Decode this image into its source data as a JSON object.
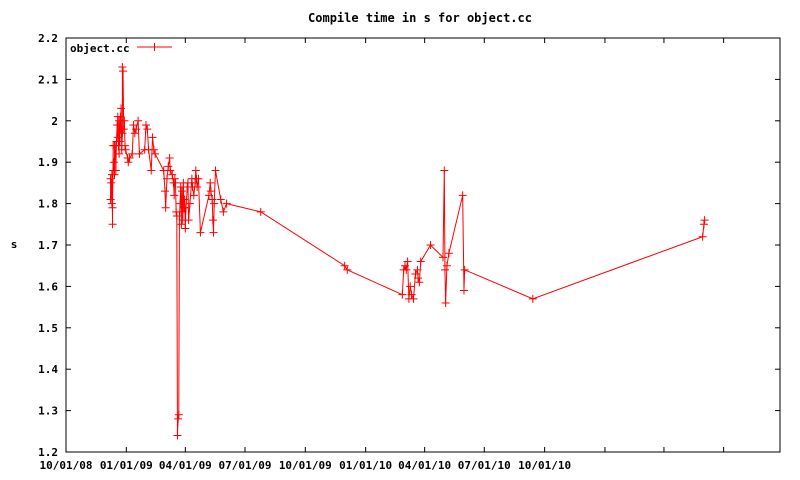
{
  "chart_data": {
    "type": "line",
    "title": "Compile time in s for object.cc",
    "ylabel": "s",
    "xlabel": "",
    "ylim": [
      1.2,
      2.2
    ],
    "yticks": [
      "1.2",
      "1.3",
      "1.4",
      "1.5",
      "1.6",
      "1.7",
      "1.8",
      "1.9",
      "2",
      "2.1",
      "2.2"
    ],
    "xlim": [
      "2008-10-01",
      "2011-09-25"
    ],
    "xticks": [
      {
        "date": "2008-10-01",
        "label": "10/01/08"
      },
      {
        "date": "2009-01-01",
        "label": "01/01/09"
      },
      {
        "date": "2009-04-01",
        "label": "04/01/09"
      },
      {
        "date": "2009-07-01",
        "label": "07/01/09"
      },
      {
        "date": "2009-10-01",
        "label": "10/01/09"
      },
      {
        "date": "2010-01-01",
        "label": "01/01/10"
      },
      {
        "date": "2010-04-01",
        "label": "04/01/10"
      },
      {
        "date": "2010-07-01",
        "label": "07/01/10"
      },
      {
        "date": "2010-10-01",
        "label": "10/01/10"
      },
      {
        "date": "2011-01-01",
        "label": ""
      },
      {
        "date": "2011-04-01",
        "label": ""
      },
      {
        "date": "2011-07-01",
        "label": ""
      }
    ],
    "grid": false,
    "legend_position": "top-left",
    "color": "#ff0000",
    "marker": "plus",
    "series": [
      {
        "name": "object.cc",
        "points": [
          [
            "2008-12-08",
            1.86
          ],
          [
            "2008-12-08",
            1.81
          ],
          [
            "2008-12-09",
            1.85
          ],
          [
            "2008-12-10",
            1.8
          ],
          [
            "2008-12-10",
            1.87
          ],
          [
            "2008-12-11",
            1.75
          ],
          [
            "2008-12-11",
            1.79
          ],
          [
            "2008-12-12",
            1.94
          ],
          [
            "2008-12-12",
            1.88
          ],
          [
            "2008-12-13",
            1.9
          ],
          [
            "2008-12-14",
            1.87
          ],
          [
            "2008-12-14",
            1.94
          ],
          [
            "2008-12-15",
            1.94
          ],
          [
            "2008-12-16",
            1.88
          ],
          [
            "2008-12-17",
            1.95
          ],
          [
            "2008-12-18",
            1.99
          ],
          [
            "2008-12-19",
            1.96
          ],
          [
            "2008-12-19",
            2.01
          ],
          [
            "2008-12-20",
            1.94
          ],
          [
            "2008-12-21",
            1.92
          ],
          [
            "2008-12-21",
            2.0
          ],
          [
            "2008-12-22",
            1.95
          ],
          [
            "2008-12-23",
            2.01
          ],
          [
            "2008-12-24",
            1.98
          ],
          [
            "2008-12-24",
            2.03
          ],
          [
            "2008-12-25",
            1.93
          ],
          [
            "2008-12-26",
            1.97
          ],
          [
            "2008-12-26",
            2.13
          ],
          [
            "2008-12-27",
            2.12
          ],
          [
            "2008-12-28",
            1.98
          ],
          [
            "2008-12-29",
            2.0
          ],
          [
            "2008-12-30",
            1.94
          ],
          [
            "2008-12-31",
            1.93
          ],
          [
            "2009-01-03",
            1.91
          ],
          [
            "2009-01-04",
            1.9
          ],
          [
            "2009-01-06",
            1.91
          ],
          [
            "2009-01-10",
            1.92
          ],
          [
            "2009-01-12",
            1.99
          ],
          [
            "2009-01-14",
            1.97
          ],
          [
            "2009-01-16",
            1.98
          ],
          [
            "2009-01-19",
            2.0
          ],
          [
            "2009-01-21",
            1.92
          ],
          [
            "2009-01-29",
            1.93
          ],
          [
            "2009-01-31",
            1.99
          ],
          [
            "2009-02-02",
            1.98
          ],
          [
            "2009-02-04",
            1.93
          ],
          [
            "2009-02-08",
            1.88
          ],
          [
            "2009-02-10",
            1.96
          ],
          [
            "2009-02-12",
            1.93
          ],
          [
            "2009-02-14",
            1.92
          ],
          [
            "2009-02-27",
            1.88
          ],
          [
            "2009-03-01",
            1.83
          ],
          [
            "2009-03-02",
            1.79
          ],
          [
            "2009-03-04",
            1.86
          ],
          [
            "2009-03-06",
            1.89
          ],
          [
            "2009-03-08",
            1.91
          ],
          [
            "2009-03-09",
            1.88
          ],
          [
            "2009-03-12",
            1.87
          ],
          [
            "2009-03-14",
            1.85
          ],
          [
            "2009-03-15",
            1.82
          ],
          [
            "2009-03-16",
            1.86
          ],
          [
            "2009-03-17",
            1.85
          ],
          [
            "2009-03-18",
            1.78
          ],
          [
            "2009-03-19",
            1.77
          ],
          [
            "2009-03-20",
            1.24
          ],
          [
            "2009-03-21",
            1.28
          ],
          [
            "2009-03-22",
            1.29
          ],
          [
            "2009-03-23",
            1.77
          ],
          [
            "2009-03-24",
            1.8
          ],
          [
            "2009-03-25",
            1.84
          ],
          [
            "2009-03-26",
            1.75
          ],
          [
            "2009-03-26",
            1.78
          ],
          [
            "2009-03-27",
            1.83
          ],
          [
            "2009-03-28",
            1.76
          ],
          [
            "2009-03-29",
            1.85
          ],
          [
            "2009-03-30",
            1.79
          ],
          [
            "2009-03-31",
            1.81
          ],
          [
            "2009-04-01",
            1.74
          ],
          [
            "2009-04-02",
            1.79
          ],
          [
            "2009-04-04",
            1.84
          ],
          [
            "2009-04-05",
            1.85
          ],
          [
            "2009-04-06",
            1.76
          ],
          [
            "2009-04-08",
            1.8
          ],
          [
            "2009-04-11",
            1.86
          ],
          [
            "2009-04-12",
            1.84
          ],
          [
            "2009-04-14",
            1.82
          ],
          [
            "2009-04-16",
            1.85
          ],
          [
            "2009-04-17",
            1.88
          ],
          [
            "2009-04-18",
            1.86
          ],
          [
            "2009-04-19",
            1.84
          ],
          [
            "2009-04-21",
            1.86
          ],
          [
            "2009-04-24",
            1.73
          ],
          [
            "2009-05-07",
            1.82
          ],
          [
            "2009-05-09",
            1.85
          ],
          [
            "2009-05-10",
            1.83
          ],
          [
            "2009-05-12",
            1.81
          ],
          [
            "2009-05-13",
            1.76
          ],
          [
            "2009-05-14",
            1.73
          ],
          [
            "2009-05-15",
            1.8
          ],
          [
            "2009-05-17",
            1.88
          ],
          [
            "2009-05-25",
            1.81
          ],
          [
            "2009-05-29",
            1.78
          ],
          [
            "2009-06-03",
            1.8
          ],
          [
            "2009-07-25",
            1.78
          ],
          [
            "2009-11-30",
            1.65
          ],
          [
            "2009-12-04",
            1.64
          ],
          [
            "2010-02-26",
            1.58
          ],
          [
            "2010-02-28",
            1.64
          ],
          [
            "2010-03-02",
            1.65
          ],
          [
            "2010-03-04",
            1.64
          ],
          [
            "2010-03-06",
            1.66
          ],
          [
            "2010-03-08",
            1.57
          ],
          [
            "2010-03-10",
            1.6
          ],
          [
            "2010-03-12",
            1.58
          ],
          [
            "2010-03-15",
            1.57
          ],
          [
            "2010-03-18",
            1.63
          ],
          [
            "2010-03-21",
            1.64
          ],
          [
            "2010-03-22",
            1.62
          ],
          [
            "2010-03-24",
            1.61
          ],
          [
            "2010-03-26",
            1.66
          ],
          [
            "2010-04-10",
            1.7
          ],
          [
            "2010-04-29",
            1.67
          ],
          [
            "2010-05-01",
            1.88
          ],
          [
            "2010-05-02",
            1.64
          ],
          [
            "2010-05-03",
            1.56
          ],
          [
            "2010-05-05",
            1.65
          ],
          [
            "2010-05-08",
            1.68
          ],
          [
            "2010-05-29",
            1.82
          ],
          [
            "2010-05-31",
            1.59
          ],
          [
            "2010-06-01",
            1.64
          ],
          [
            "2010-09-13",
            1.57
          ],
          [
            "2011-05-30",
            1.72
          ],
          [
            "2011-06-01",
            1.75
          ],
          [
            "2011-06-02",
            1.76
          ]
        ]
      }
    ]
  }
}
